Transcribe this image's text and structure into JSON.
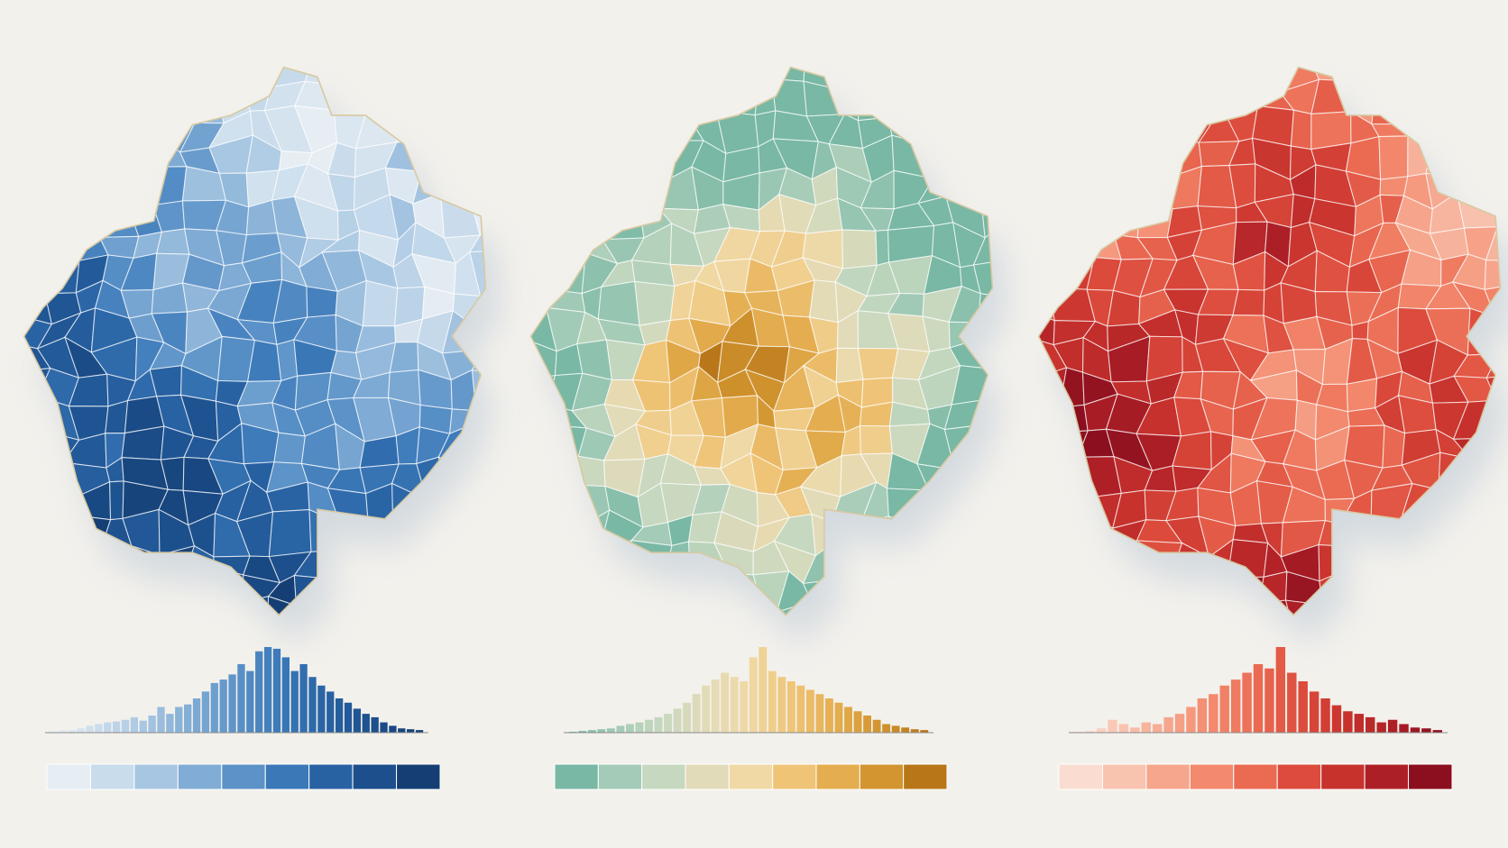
{
  "chart_data": [
    {
      "type": "histogram",
      "values": [
        2,
        3,
        3,
        5,
        8,
        10,
        12,
        13,
        15,
        18,
        14,
        20,
        30,
        22,
        30,
        33,
        40,
        48,
        58,
        62,
        68,
        80,
        72,
        95,
        100,
        98,
        88,
        72,
        80,
        65,
        55,
        48,
        40,
        35,
        28,
        22,
        18,
        12,
        8,
        5,
        4,
        3
      ],
      "ylim": [
        0,
        100
      ],
      "colors": [
        "#e6edf3",
        "#c9dcec",
        "#a7c6e2",
        "#80acd5",
        "#5b92c8",
        "#3a78b8",
        "#2862a3",
        "#1c4f8c",
        "#153f74"
      ]
    },
    {
      "type": "histogram",
      "values": [
        1,
        2,
        3,
        4,
        5,
        8,
        10,
        12,
        15,
        18,
        22,
        28,
        35,
        45,
        55,
        62,
        70,
        65,
        60,
        88,
        100,
        72,
        65,
        60,
        55,
        50,
        45,
        40,
        35,
        30,
        25,
        20,
        15,
        10,
        8,
        6,
        4,
        3
      ],
      "ylim": [
        0,
        100
      ],
      "colors": [
        "#78b8a4",
        "#a3cbb7",
        "#c6d8bf",
        "#e1dbb9",
        "#f0d9a4",
        "#efc477",
        "#e4ad4f",
        "#d2952f",
        "#b97619"
      ]
    },
    {
      "type": "histogram",
      "values": [
        1,
        2,
        5,
        15,
        10,
        6,
        12,
        10,
        18,
        22,
        30,
        40,
        45,
        55,
        62,
        70,
        80,
        75,
        100,
        70,
        60,
        48,
        40,
        32,
        25,
        22,
        18,
        12,
        15,
        10,
        6,
        5,
        3
      ],
      "ylim": [
        0,
        100
      ],
      "colors": [
        "#fadcd0",
        "#f8c3af",
        "#f6a68d",
        "#f3896d",
        "#ea6a52",
        "#dc4b3c",
        "#c7322d",
        "#ad1f26",
        "#8b0f1f"
      ]
    }
  ]
}
